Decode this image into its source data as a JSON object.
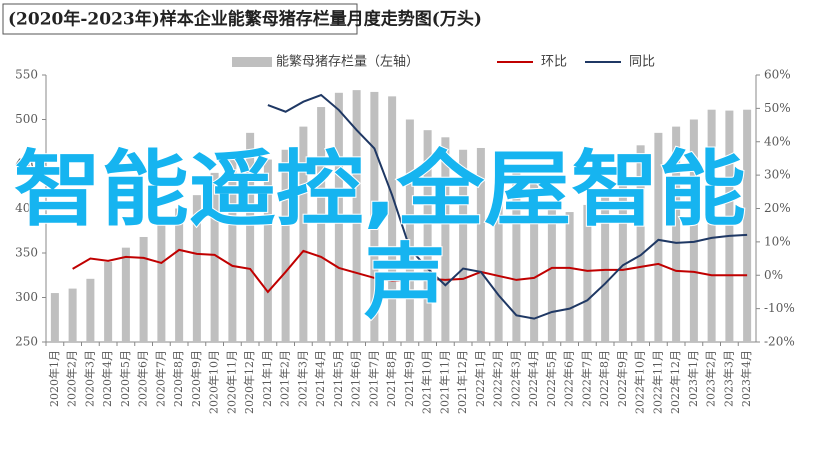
{
  "chart_data": {
    "type": "bar",
    "title": "(2020年-2023年)样本企业能繁母猪存栏量月度走势图(万头)",
    "categories": [
      "2020年1月",
      "2020年2月",
      "2020年3月",
      "2020年4月",
      "2020年5月",
      "2020年6月",
      "2020年7月",
      "2020年8月",
      "2020年9月",
      "2020年10月",
      "2020年11月",
      "2020年12月",
      "2021年1月",
      "2021年2月",
      "2021年3月",
      "2021年4月",
      "2021年5月",
      "2021年6月",
      "2021年7月",
      "2021年8月",
      "2021年9月",
      "2021年10月",
      "2021年11月",
      "2021年12月",
      "2022年1月",
      "2022年2月",
      "2022年3月",
      "2022年4月",
      "2022年5月",
      "2022年6月",
      "2022年7月",
      "2022年8月",
      "2022年9月",
      "2022年10月",
      "2022年11月",
      "2022年12月",
      "2023年1月",
      "2023年2月",
      "2023年3月",
      "2023年4月"
    ],
    "series": [
      {
        "name": "能繁母猪存栏量（左轴）",
        "type": "bar",
        "axis": "y",
        "color": "#bfbfbf",
        "values": [
          305,
          310,
          321,
          340,
          356,
          368,
          385,
          400,
          415,
          440,
          463,
          485,
          455,
          466,
          492,
          514,
          530,
          533,
          531,
          526,
          500,
          488,
          480,
          466,
          468,
          460,
          449,
          432,
          404,
          396,
          404,
          421,
          449,
          471,
          485,
          492,
          500,
          511,
          510,
          511
        ]
      },
      {
        "name": "环比",
        "type": "line",
        "axis": "y2",
        "color": "#c00000",
        "values": [
          null,
          1.9,
          5,
          4.3,
          5.5,
          5.2,
          3.7,
          7.6,
          6.4,
          6.1,
          2.8,
          1.9,
          -5,
          1,
          7.3,
          5.5,
          2.2,
          0.7,
          -0.8,
          -1.7,
          -1.4,
          -1.1,
          -1.4,
          -1.1,
          1,
          -0.2,
          -1.4,
          -0.8,
          2.2,
          2.2,
          1.3,
          1.6,
          1.6,
          2.5,
          3.4,
          1.3,
          1,
          0,
          0,
          0
        ]
      },
      {
        "name": "同比",
        "type": "line",
        "axis": "y2",
        "color": "#1f3864",
        "values": [
          null,
          null,
          null,
          null,
          null,
          null,
          null,
          null,
          null,
          null,
          null,
          null,
          51,
          49,
          52,
          54,
          49.5,
          43.5,
          38,
          24,
          8,
          2,
          -3,
          2,
          1,
          -6,
          -12,
          -13,
          -11,
          -10,
          -7.5,
          -2.5,
          3,
          6,
          10.6,
          9.7,
          10,
          11.2,
          11.8,
          12.1
        ]
      }
    ],
    "ylim": [
      250,
      550
    ],
    "yticks": [
      250,
      300,
      350,
      400,
      450,
      500,
      550
    ],
    "y2lim": [
      -20,
      60
    ],
    "y2ticks": [
      {
        "value": -20,
        "label": "-20%"
      },
      {
        "value": -10,
        "label": "-10%"
      },
      {
        "value": 0,
        "label": "0%"
      },
      {
        "value": 10,
        "label": "10%"
      },
      {
        "value": 20,
        "label": "20%"
      },
      {
        "value": 30,
        "label": "30%"
      },
      {
        "value": 40,
        "label": "40%"
      },
      {
        "value": 50,
        "label": "50%"
      },
      {
        "value": 60,
        "label": "60%"
      }
    ],
    "grid": false
  },
  "overlay": {
    "line1": "智能遥控,全屋智能",
    "line2": "声"
  }
}
